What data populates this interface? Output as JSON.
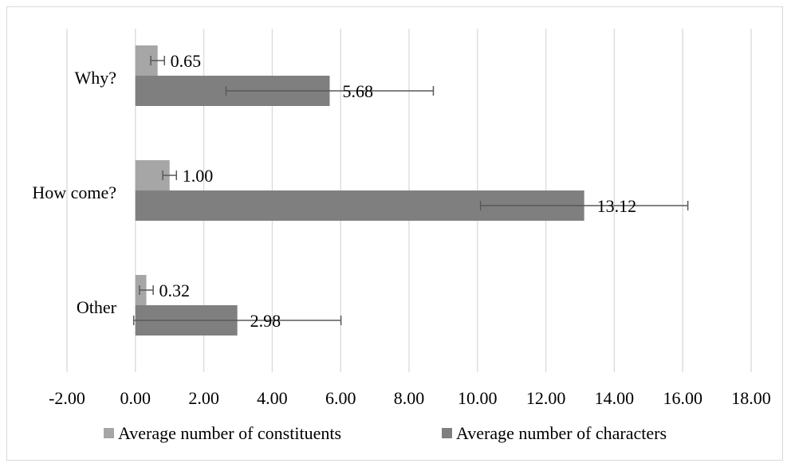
{
  "chart_data": {
    "type": "bar",
    "orientation": "horizontal",
    "categories": [
      "Why?",
      "How come?",
      "Other"
    ],
    "series": [
      {
        "name": "Average number of constituents",
        "values": [
          0.65,
          1.0,
          0.32
        ],
        "labels": [
          "0.65",
          "1.00",
          "0.32"
        ],
        "error": [
          0.2,
          0.2,
          0.2
        ],
        "color": "#a6a6a6"
      },
      {
        "name": "Average number of characters",
        "values": [
          5.68,
          13.12,
          2.98
        ],
        "labels": [
          "5.68",
          "13.12",
          "2.98"
        ],
        "error": [
          3.03,
          3.03,
          3.03
        ],
        "color": "#7f7f7f"
      }
    ],
    "xlim": [
      -2,
      18
    ],
    "x_ticks": [
      -2,
      0,
      2,
      4,
      6,
      8,
      10,
      12,
      14,
      16,
      18
    ],
    "x_tick_labels": [
      "-2.00",
      "0.00",
      "2.00",
      "4.00",
      "6.00",
      "8.00",
      "10.00",
      "12.00",
      "14.00",
      "16.00",
      "18.00"
    ],
    "grid": "vertical",
    "legend_position": "bottom",
    "error_bar_color": "#595959",
    "grid_color": "#d9d9d9",
    "title": "",
    "xlabel": "",
    "ylabel": ""
  }
}
